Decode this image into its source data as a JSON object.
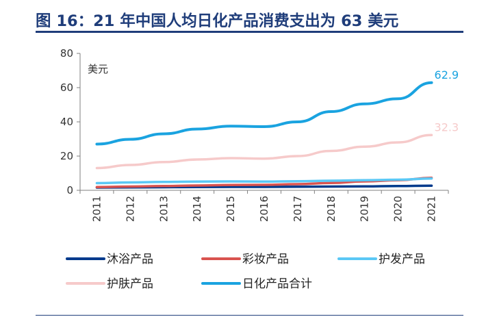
{
  "header": {
    "title": "图 16：21 年中国人均日化产品消费支出为 63 美元"
  },
  "chart_data": {
    "type": "line",
    "ylabel": "美元",
    "ylim": [
      0,
      80
    ],
    "yticks": [
      "0",
      "20",
      "40",
      "60",
      "80"
    ],
    "categories": [
      "2011",
      "2012",
      "2013",
      "2014",
      "2015",
      "2016",
      "2017",
      "2018",
      "2019",
      "2020",
      "2021"
    ],
    "series": [
      {
        "name": "沐浴产品",
        "color": "#003a8c",
        "values": [
          1.6,
          1.7,
          1.8,
          1.9,
          2.0,
          2.0,
          2.1,
          2.2,
          2.3,
          2.5,
          2.7
        ]
      },
      {
        "name": "彩妆产品",
        "color": "#d9534f",
        "values": [
          1.9,
          2.2,
          2.5,
          2.8,
          3.1,
          3.2,
          3.6,
          4.3,
          5.2,
          5.9,
          7.3
        ]
      },
      {
        "name": "护发产品",
        "color": "#5bc8f5",
        "values": [
          4.2,
          4.6,
          4.9,
          5.1,
          5.2,
          5.1,
          5.3,
          5.6,
          5.9,
          6.2,
          6.9
        ]
      },
      {
        "name": "护肤产品",
        "color": "#f6caca",
        "values": [
          13.0,
          14.8,
          16.5,
          18.0,
          18.8,
          18.5,
          20.0,
          23.0,
          25.5,
          28.0,
          32.3
        ],
        "label": "32.3"
      },
      {
        "name": "日化产品合计",
        "color": "#1aa3e0",
        "values": [
          27.0,
          29.8,
          33.0,
          35.8,
          37.5,
          37.2,
          40.0,
          46.0,
          50.5,
          53.5,
          62.9
        ],
        "label": "62.9"
      }
    ]
  }
}
